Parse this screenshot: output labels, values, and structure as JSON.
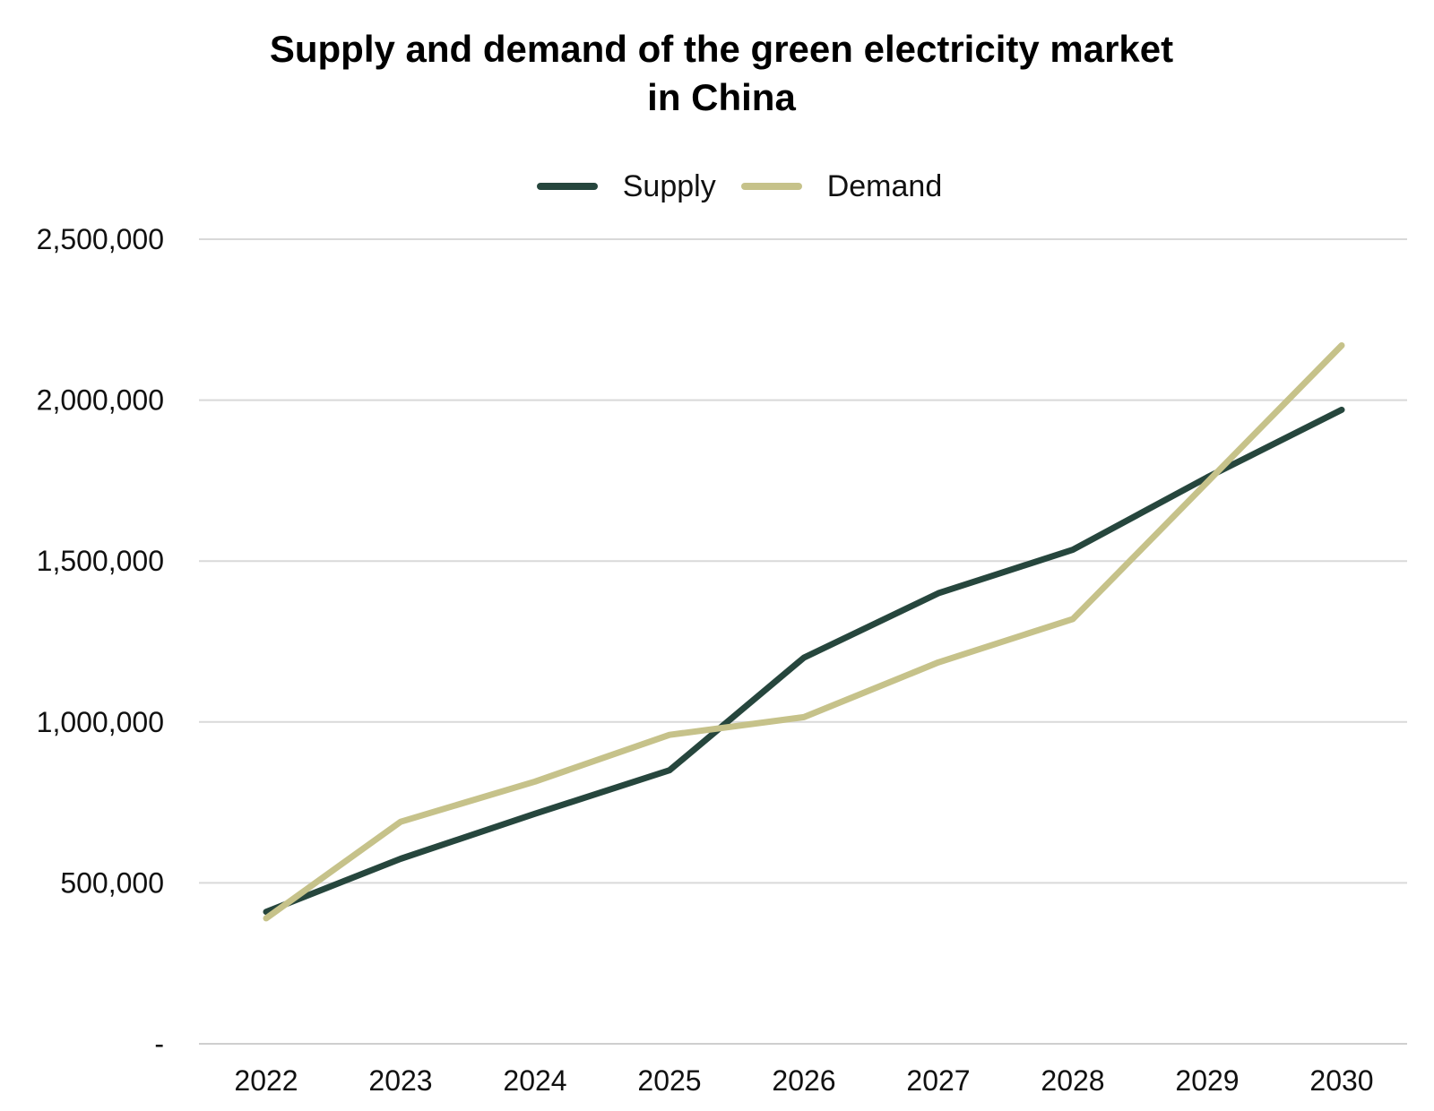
{
  "chart_data": {
    "type": "line",
    "title_lines": [
      "Supply and demand of the green electricity market",
      "in China"
    ],
    "xlabel": "",
    "ylabel": "",
    "x": [
      "2022",
      "2023",
      "2024",
      "2025",
      "2026",
      "2027",
      "2028",
      "2029",
      "2030"
    ],
    "ylim": [
      0,
      2500000
    ],
    "yticks": [
      0,
      500000,
      1000000,
      1500000,
      2000000,
      2500000
    ],
    "ytick_labels": [
      "-",
      "500,000",
      "1,000,000",
      "1,500,000",
      "2,000,000",
      "2,500,000"
    ],
    "grid": true,
    "legend_position": "top-center",
    "series": [
      {
        "name": "Supply",
        "color": "#26463d",
        "values": [
          410000,
          575000,
          715000,
          850000,
          1200000,
          1400000,
          1535000,
          1760000,
          1970000
        ]
      },
      {
        "name": "Demand",
        "color": "#c6c28a",
        "values": [
          390000,
          690000,
          815000,
          960000,
          1015000,
          1185000,
          1320000,
          1745000,
          2170000
        ]
      }
    ]
  }
}
